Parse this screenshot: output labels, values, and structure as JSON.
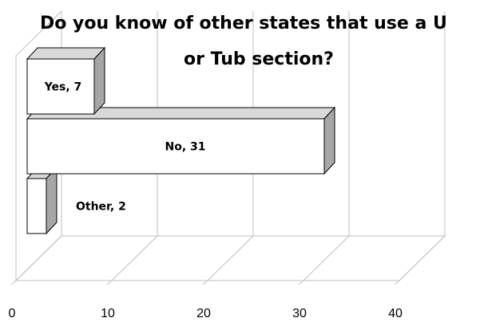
{
  "chart_data": {
    "type": "bar",
    "orientation": "horizontal",
    "style": "3d",
    "title_lines": [
      "Do you know of other states that use a U",
      "or Tub section?"
    ],
    "categories": [
      "Yes",
      "No",
      "Other"
    ],
    "values": [
      7,
      31,
      2
    ],
    "data_labels": [
      "Yes, 7",
      "No, 31",
      "Other, 2"
    ],
    "xlim": [
      0,
      40
    ],
    "x_ticks": [
      "0",
      "10",
      "20",
      "30",
      "40"
    ],
    "grid": true,
    "legend": "none",
    "colors": {
      "bar_face": "#ffffff",
      "bar_top": "#d9d9d9",
      "bar_side": "#a6a6a6",
      "bar_stroke": "#000000",
      "grid": "#bfbfbf",
      "wall": "#ffffff"
    }
  }
}
